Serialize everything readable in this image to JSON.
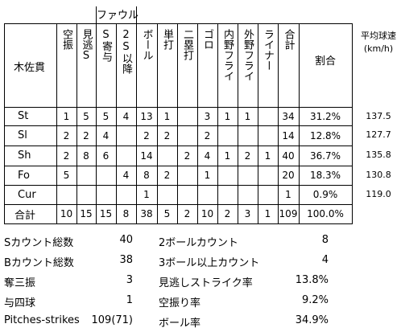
{
  "table": {
    "group_label": "ファウル",
    "pitcher_label": "木佐貫",
    "columns": [
      "空振",
      "見逃S",
      "S寄与",
      "2S以降",
      "ボール",
      "単打",
      "二塁打",
      "ゴロ",
      "内野フライ",
      "外野フライ",
      "ライナー",
      "合計",
      "割合"
    ],
    "rows": [
      {
        "label": "St",
        "cells": [
          "1",
          "5",
          "5",
          "4",
          "13",
          "1",
          "",
          "3",
          "1",
          "1",
          "",
          "34",
          "31.2%"
        ]
      },
      {
        "label": "Sl",
        "cells": [
          "2",
          "2",
          "4",
          "",
          "2",
          "2",
          "",
          "2",
          "",
          "",
          "",
          "14",
          "12.8%"
        ]
      },
      {
        "label": "Sh",
        "cells": [
          "2",
          "8",
          "6",
          "",
          "14",
          "",
          "2",
          "4",
          "1",
          "2",
          "1",
          "40",
          "36.7%"
        ]
      },
      {
        "label": "Fo",
        "cells": [
          "5",
          "",
          "",
          "4",
          "8",
          "2",
          "",
          "1",
          "",
          "",
          "",
          "20",
          "18.3%"
        ]
      },
      {
        "label": "Cur",
        "cells": [
          "",
          "",
          "",
          "",
          "1",
          "",
          "",
          "",
          "",
          "",
          "",
          "1",
          "0.9%"
        ]
      },
      {
        "label": "合計",
        "cells": [
          "10",
          "15",
          "15",
          "8",
          "38",
          "5",
          "2",
          "10",
          "2",
          "3",
          "1",
          "109",
          "100.0%"
        ]
      }
    ]
  },
  "speed": {
    "header_line1": "平均球速",
    "header_line2": "(km/h)",
    "values": [
      "137.5",
      "127.7",
      "135.8",
      "130.8",
      "119.0"
    ]
  },
  "summary": [
    {
      "label": "Sカウント総数",
      "value": "40",
      "label2": "2ボールカウント",
      "value2": "8"
    },
    {
      "label": "Bカウント総数",
      "value": "38",
      "label2": "3ボール以上カウント",
      "value2": "4"
    },
    {
      "label": "奪三振",
      "value": "3",
      "label2": "見逃しストライク率",
      "value2": "13.8%"
    },
    {
      "label": "与四球",
      "value": "1",
      "label2": "空振り率",
      "value2": "9.2%"
    },
    {
      "label": "Pitches-strikes",
      "value": "109(71)",
      "label2": "ボール率",
      "value2": "34.9%"
    }
  ]
}
